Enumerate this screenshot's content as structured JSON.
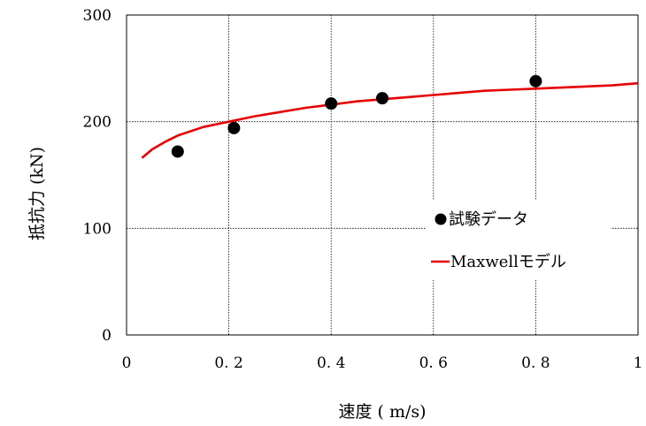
{
  "chart_data": {
    "type": "scatter",
    "xlabel": "速度 ( m/s)",
    "ylabel": "抵抗力 (kN)",
    "xlim": [
      0,
      1
    ],
    "ylim": [
      0,
      300
    ],
    "x_ticks": [
      "0",
      "0.2",
      "0.4",
      "0.6",
      "0.8",
      "1"
    ],
    "y_ticks": [
      "0",
      "100",
      "200",
      "300"
    ],
    "grid": true,
    "legend_position": "right-center",
    "series": [
      {
        "name": "試験データ",
        "kind": "scatter",
        "color": "#000000",
        "x": [
          0.1,
          0.21,
          0.4,
          0.5,
          0.8
        ],
        "y": [
          172,
          194,
          217,
          222,
          238
        ]
      },
      {
        "name": "Maxwellモデル",
        "kind": "line",
        "color": "#e60000",
        "x": [
          0.03,
          0.05,
          0.075,
          0.1,
          0.15,
          0.2,
          0.25,
          0.3,
          0.35,
          0.4,
          0.45,
          0.5,
          0.55,
          0.6,
          0.65,
          0.7,
          0.75,
          0.8,
          0.85,
          0.9,
          0.95,
          1.0
        ],
        "y": [
          166,
          174,
          181,
          187,
          195,
          200,
          205,
          209,
          213,
          216,
          219,
          221,
          223,
          225,
          227,
          229,
          230,
          231,
          232,
          233,
          234,
          236
        ]
      }
    ]
  }
}
